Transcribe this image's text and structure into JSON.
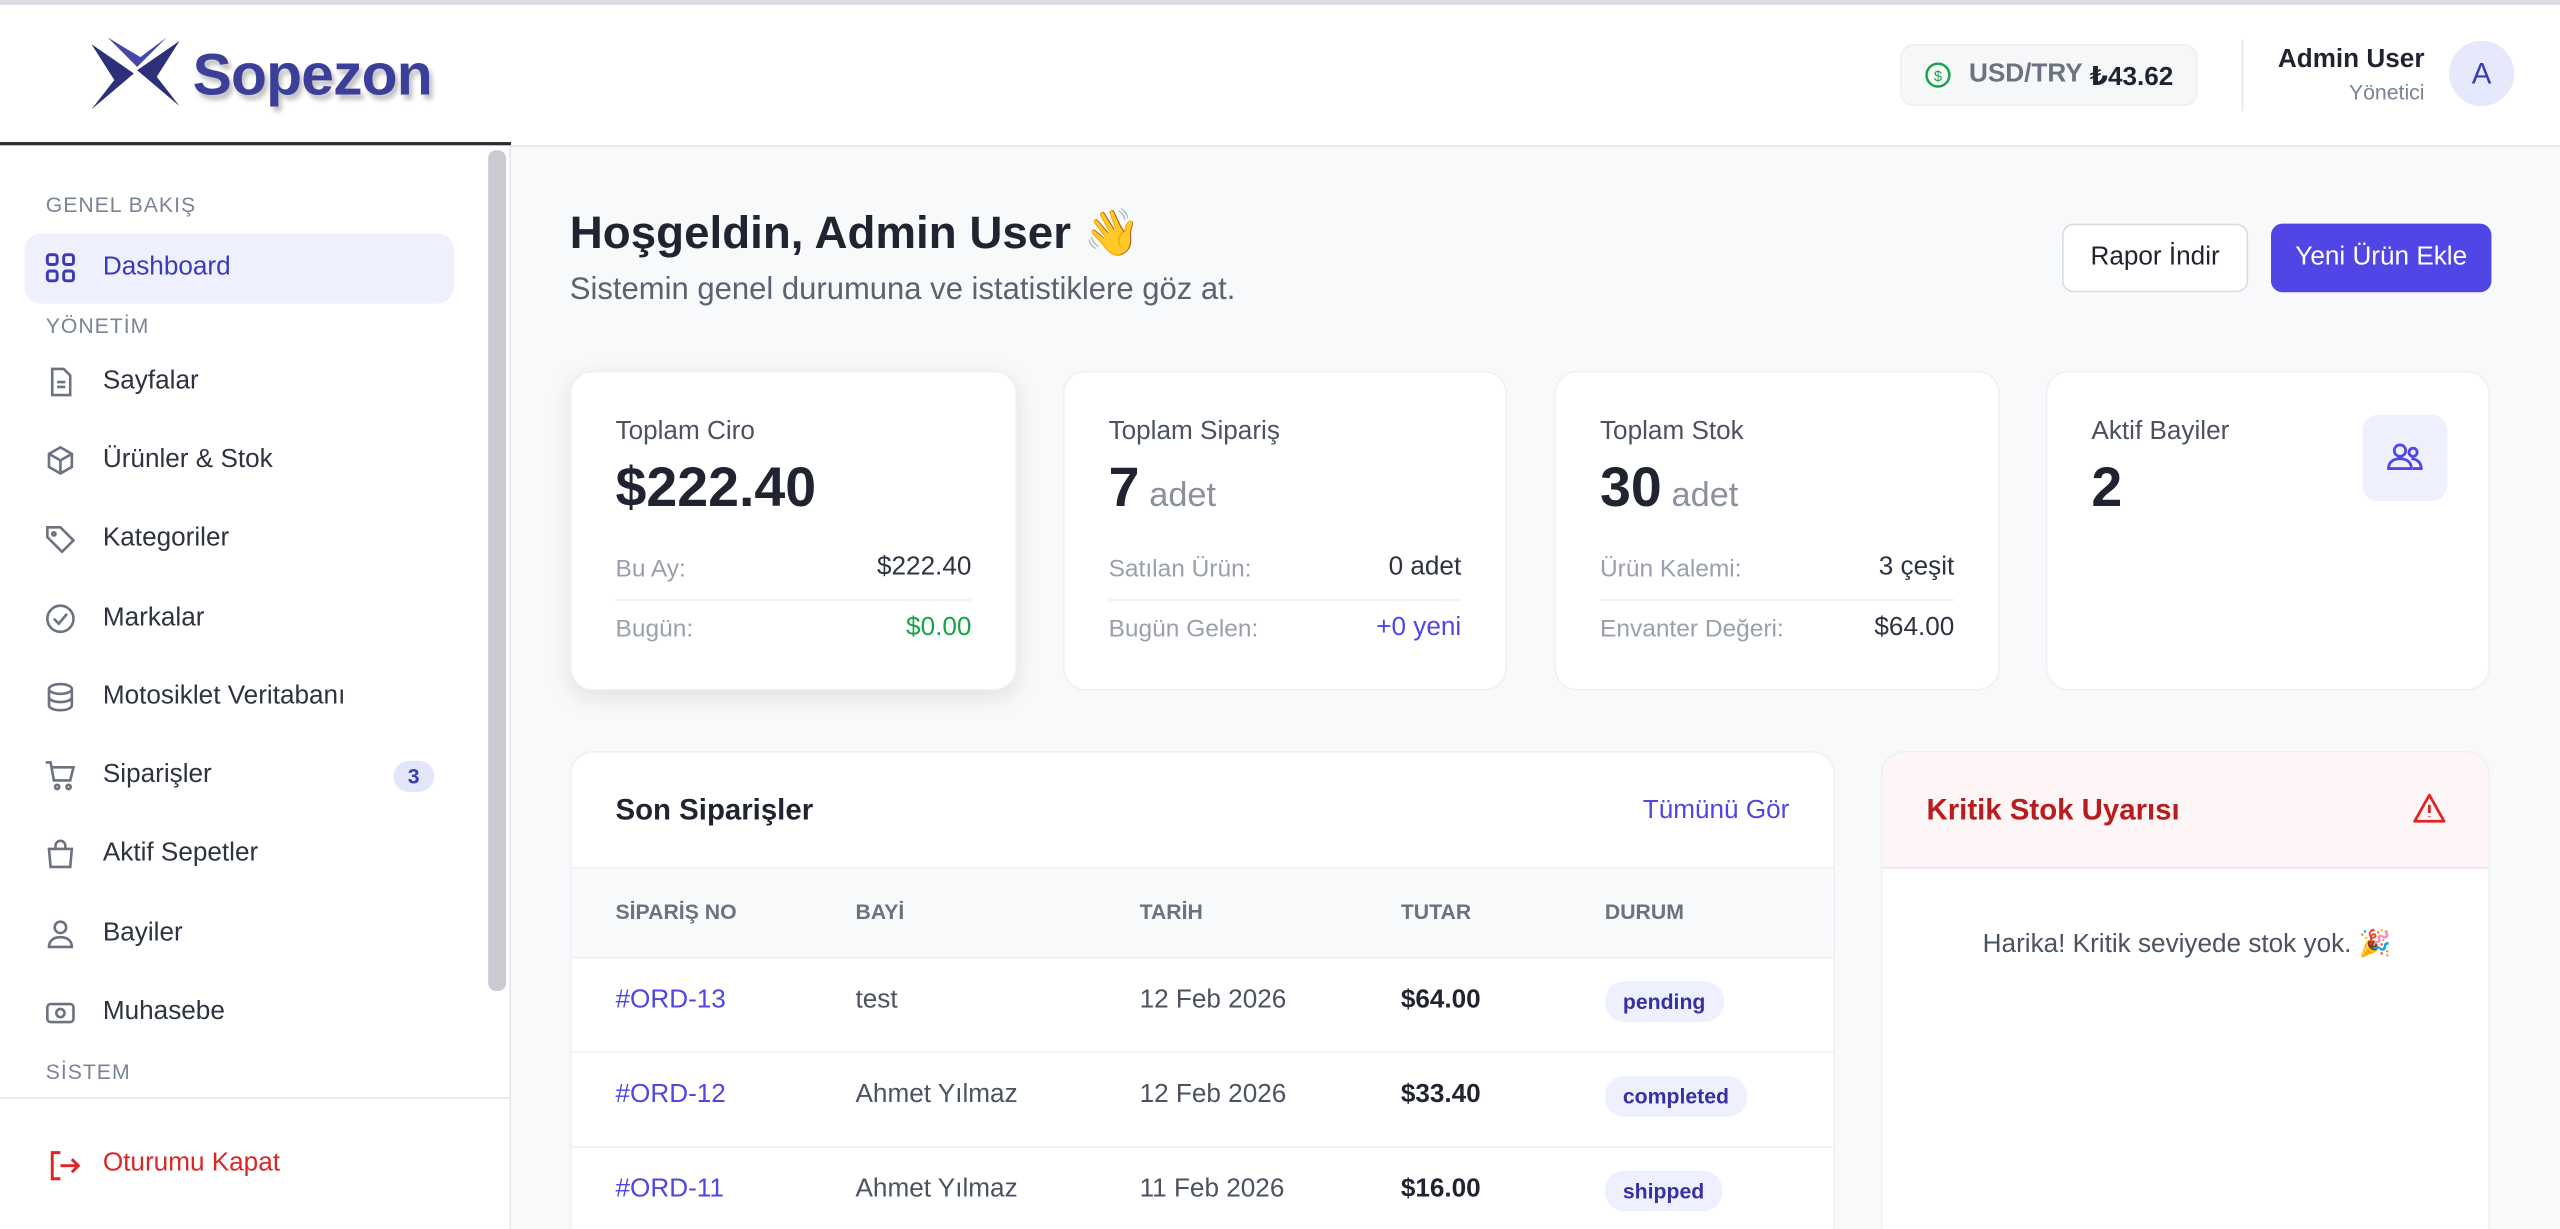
{
  "brand": "Sopezon",
  "topbar": {
    "currency_label": "USD/TRY",
    "currency_value": "₺43.62",
    "user_name": "Admin User",
    "user_role": "Yönetici",
    "avatar": "A"
  },
  "sidebar": {
    "sections": [
      {
        "title": "GENEL BAKIŞ",
        "items": [
          {
            "label": "Dashboard"
          }
        ]
      },
      {
        "title": "YÖNETİM",
        "items": [
          {
            "label": "Sayfalar"
          },
          {
            "label": "Ürünler & Stok"
          },
          {
            "label": "Kategoriler"
          },
          {
            "label": "Markalar"
          },
          {
            "label": "Motosiklet Veritabanı"
          },
          {
            "label": "Siparişler",
            "badge": 3
          },
          {
            "label": "Aktif Sepetler"
          },
          {
            "label": "Bayiler"
          },
          {
            "label": "Muhasebe"
          }
        ]
      },
      {
        "title": "SİSTEM",
        "items": []
      }
    ],
    "logout": "Oturumu Kapat"
  },
  "header": {
    "title": "Hoşgeldin, Admin User 👋",
    "subtitle": "Sistemin genel durumuna ve istatistiklere göz at.",
    "buttons": [
      "Rapor İndir",
      "Yeni Ürün Ekle"
    ]
  },
  "stats": [
    {
      "label": "Toplam Ciro",
      "value": "$222.40",
      "rows": [
        {
          "label": "Bu Ay:",
          "value": "$222.40"
        },
        {
          "label": "Bugün:",
          "value": "$0.00"
        }
      ]
    },
    {
      "label": "Toplam Sipariş",
      "value": "7",
      "unit": "adet",
      "rows": [
        {
          "label": "Satılan Ürün:",
          "value": "0 adet"
        },
        {
          "label": "Bugün Gelen:",
          "value": "+0 yeni"
        }
      ]
    },
    {
      "label": "Toplam Stok",
      "value": "30",
      "unit": "adet",
      "rows": [
        {
          "label": "Ürün Kalemi:",
          "value": "3 çeşit"
        },
        {
          "label": "Envanter Değeri:",
          "value": "$64.00"
        }
      ]
    },
    {
      "label": "Aktif Bayiler",
      "value": "2"
    }
  ],
  "orders": {
    "title": "Son Siparişler",
    "link": "Tümünü Gör",
    "columns": [
      "SİPARİŞ NO",
      "BAYİ",
      "TARİH",
      "TUTAR",
      "DURUM"
    ],
    "rows": [
      [
        "#ORD-13",
        "test",
        "12 Feb 2026",
        "$64.00",
        "pending"
      ],
      [
        "#ORD-12",
        "Ahmet Yılmaz",
        "12 Feb 2026",
        "$33.40",
        "completed"
      ],
      [
        "#ORD-11",
        "Ahmet Yılmaz",
        "11 Feb 2026",
        "$16.00",
        "shipped"
      ]
    ]
  },
  "critical": {
    "title": "Kritik Stok Uyarısı",
    "message": "Harika! Kritik seviyede stok yok. 🎉"
  }
}
